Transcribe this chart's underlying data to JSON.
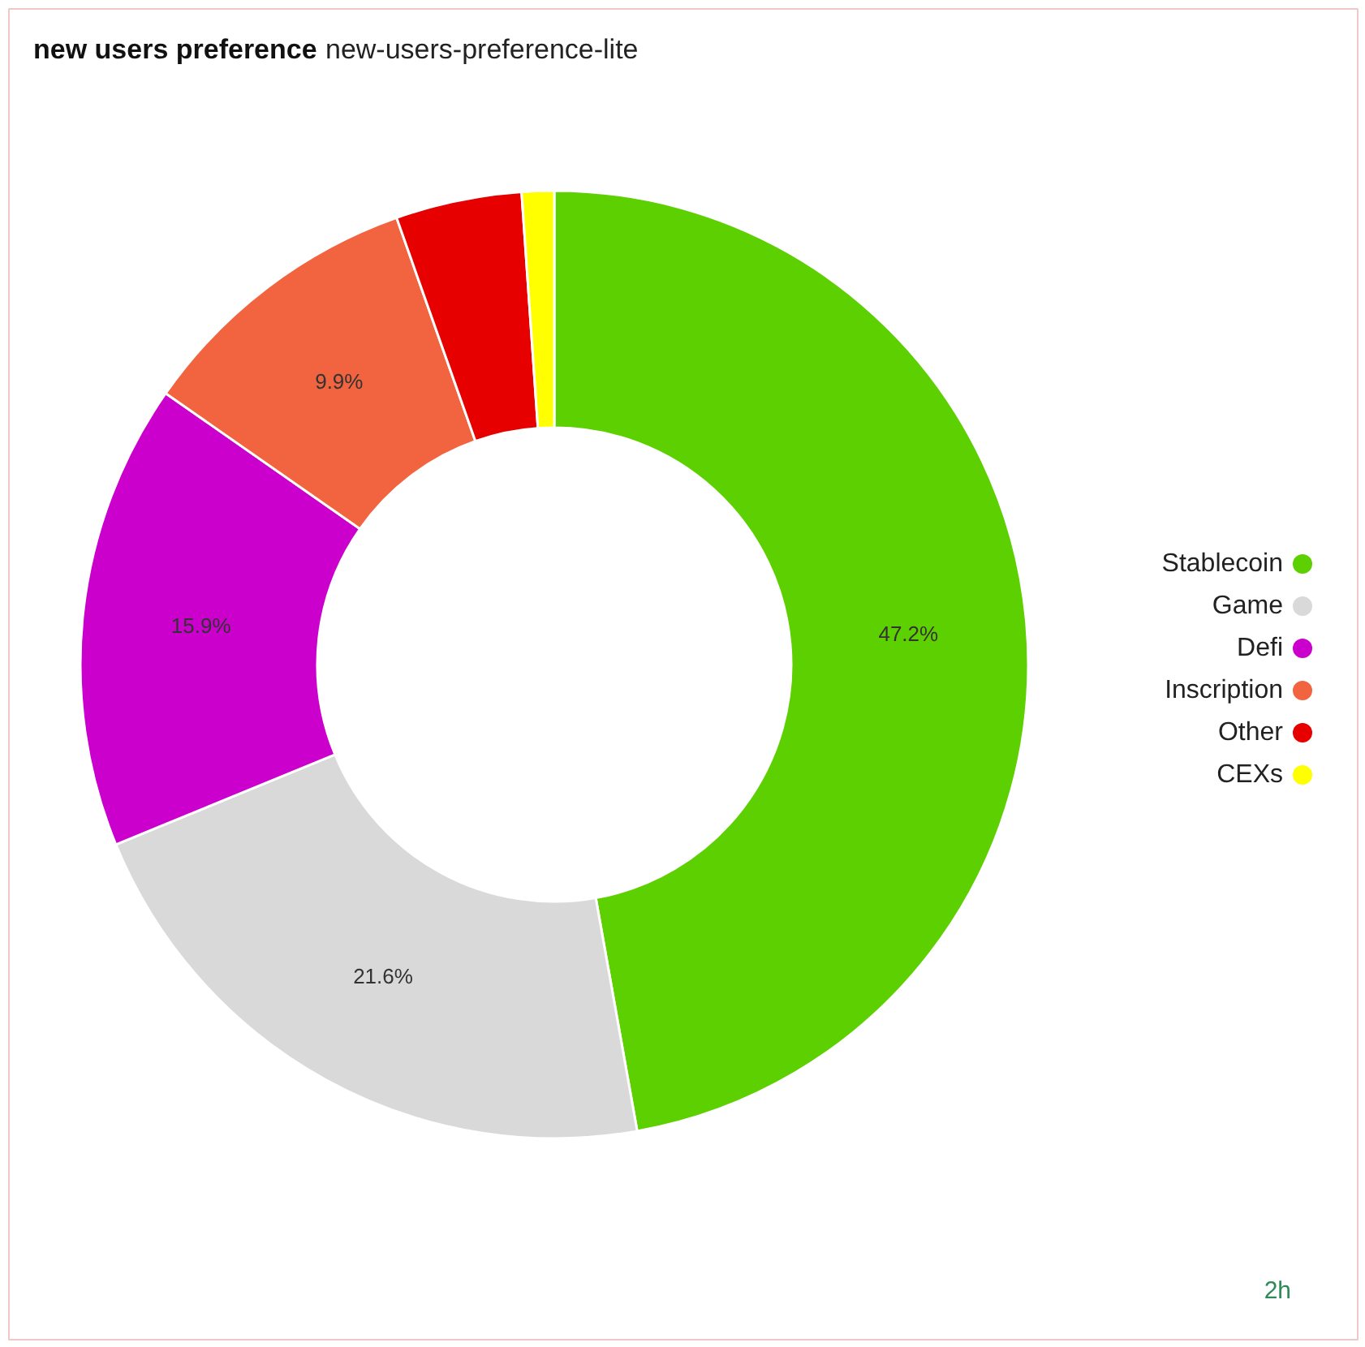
{
  "chart_data": {
    "type": "donut",
    "title": "new users preference",
    "subtitle": "new-users-preference-lite",
    "categories": [
      "Stablecoin",
      "Game",
      "Defi",
      "Inscription",
      "Other",
      "CEXs"
    ],
    "values": [
      47.2,
      21.6,
      15.9,
      9.9,
      4.3,
      1.1
    ],
    "colors": [
      "#5cd000",
      "#d9d9d9",
      "#cc00cc",
      "#f26440",
      "#e60000",
      "#ffff00"
    ],
    "value_labels": [
      "47.2%",
      "21.6%",
      "15.9%",
      "9.9%",
      null,
      null
    ],
    "legend": "right",
    "annotations": [
      "2h"
    ]
  }
}
